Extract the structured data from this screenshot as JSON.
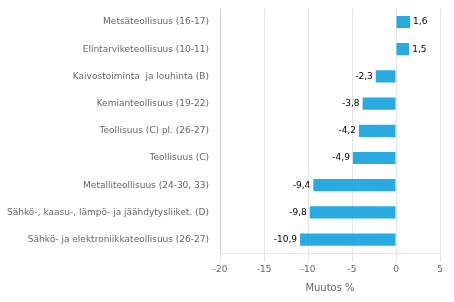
{
  "chart_data": {
    "type": "bar",
    "orientation": "horizontal",
    "categories": [
      "Sähkö- ja elektroniikkateollisuus (26-27)",
      "Sähkö-, kaasu-, lämpö- ja jäähdytysliiket. (D)",
      "Metalliteollisuus (24-30, 33)",
      "Teollisuus (C)",
      "Teollisuus (C) pl. (26-27)",
      "Kemianteollisuus (19-22)",
      "Kaivostoiminta  ja louhinta (B)",
      "Elintarviketeollisuus (10-11)",
      "Metsäteollisuus (16-17)"
    ],
    "values": [
      -10.9,
      -9.8,
      -9.4,
      -4.9,
      -4.2,
      -3.8,
      -2.3,
      1.5,
      1.6
    ],
    "value_labels": [
      "-10,9",
      "-9,8",
      "-9,4",
      "-4,9",
      "-4,2",
      "-3,8",
      "-2,3",
      "1,5",
      "1,6"
    ],
    "data_labels": true,
    "color": "#29abe2",
    "xlabel": "Muutos %",
    "xlim": [
      -20,
      5
    ],
    "xticks": [
      -20,
      -15,
      -10,
      -5,
      0,
      5
    ],
    "grid": true
  }
}
